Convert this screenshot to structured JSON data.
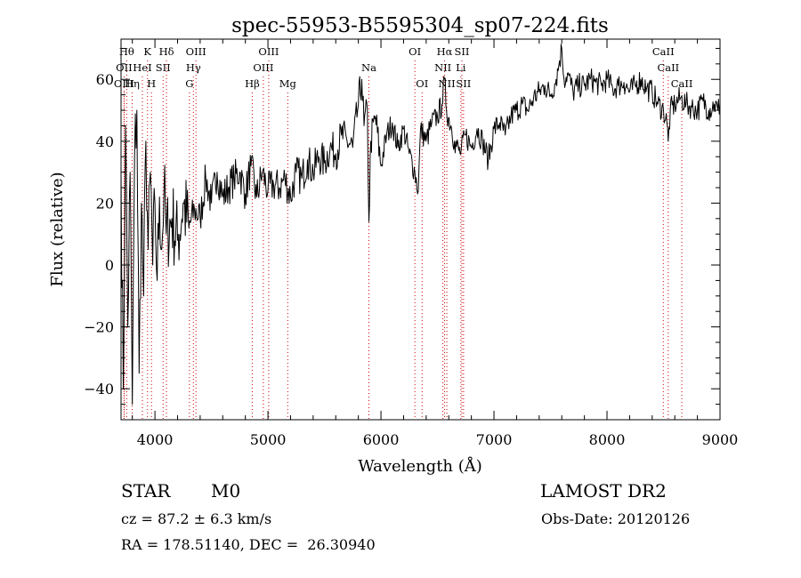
{
  "chart_data": {
    "type": "line",
    "title": "spec-55953-B5595304_sp07-224.fits",
    "xlabel": "Wavelength (Å)",
    "ylabel": "Flux (relative)",
    "xlim": [
      3700,
      9000
    ],
    "ylim": [
      -50,
      73
    ],
    "xticks": [
      4000,
      5000,
      6000,
      7000,
      8000,
      9000
    ],
    "yticks": [
      -40,
      -20,
      0,
      20,
      40,
      60
    ],
    "grid": false,
    "legend": "none",
    "line_color": "#000000",
    "marker_color": "#cc0000",
    "series": [
      {
        "x": [
          3700,
          3720,
          3740,
          3760,
          3780,
          3800,
          3820,
          3840,
          3860,
          3880,
          3900,
          3920,
          3940,
          3960,
          3980,
          4000,
          4020,
          4040,
          4060,
          4080,
          4100,
          4150,
          4200,
          4250,
          4300,
          4350,
          4400,
          4450,
          4500,
          4550,
          4600,
          4650,
          4700,
          4750,
          4800,
          4850,
          4900,
          4950,
          5000,
          5050,
          5100,
          5150,
          5200,
          5250,
          5300,
          5350,
          5400,
          5450,
          5500,
          5550,
          5600,
          5650,
          5700,
          5750,
          5800,
          5830,
          5850,
          5880,
          5893,
          5910,
          5950,
          6000,
          6050,
          6100,
          6150,
          6200,
          6250,
          6300,
          6330,
          6350,
          6400,
          6450,
          6500,
          6540,
          6563,
          6580,
          6620,
          6650,
          6700,
          6750,
          6800,
          6850,
          6900,
          6950,
          7000,
          7050,
          7100,
          7150,
          7200,
          7250,
          7300,
          7350,
          7400,
          7450,
          7500,
          7550,
          7580,
          7600,
          7620,
          7650,
          7700,
          7750,
          7800,
          7850,
          7900,
          7950,
          8000,
          8050,
          8100,
          8150,
          8200,
          8250,
          8300,
          8350,
          8400,
          8450,
          8500,
          8530,
          8542,
          8560,
          8600,
          8650,
          8700,
          8750,
          8800,
          8850,
          8900,
          8950,
          8980,
          9000
        ],
        "y": [
          30,
          -40,
          45,
          -20,
          30,
          -45,
          35,
          50,
          -35,
          20,
          -10,
          40,
          5,
          30,
          0,
          20,
          -5,
          22,
          5,
          25,
          10,
          15,
          8,
          20,
          12,
          18,
          15,
          28,
          20,
          30,
          22,
          25,
          28,
          30,
          23,
          32,
          22,
          30,
          24,
          26,
          25,
          28,
          22,
          30,
          28,
          34,
          30,
          35,
          33,
          38,
          36,
          42,
          40,
          38,
          52,
          60,
          45,
          50,
          14,
          40,
          48,
          32,
          42,
          46,
          38,
          44,
          36,
          30,
          24,
          44,
          40,
          46,
          48,
          52,
          60,
          50,
          45,
          40,
          36,
          42,
          38,
          44,
          40,
          34,
          44,
          46,
          42,
          48,
          50,
          52,
          50,
          54,
          56,
          58,
          55,
          60,
          66,
          70,
          60,
          62,
          56,
          58,
          58,
          60,
          59,
          58,
          60,
          57,
          58,
          59,
          56,
          58,
          60,
          57,
          56,
          52,
          50,
          46,
          40,
          50,
          52,
          54,
          52,
          51,
          50,
          53,
          50,
          52,
          50,
          52
        ]
      }
    ],
    "lines": [
      {
        "wl": 3750,
        "label": "Hθ",
        "row": 0
      },
      {
        "wl": 3727,
        "label": "OII",
        "row": 1
      },
      {
        "wl": 3727,
        "label": "OIII",
        "row": 2
      },
      {
        "wl": 3798,
        "label": "Hη",
        "row": 2
      },
      {
        "wl": 3934,
        "label": "K",
        "row": 0
      },
      {
        "wl": 3889,
        "label": "HeI",
        "row": 1
      },
      {
        "wl": 3969,
        "label": "H",
        "row": 2
      },
      {
        "wl": 4072,
        "label": "SII",
        "row": 1
      },
      {
        "wl": 4102,
        "label": "Hδ",
        "row": 0
      },
      {
        "wl": 4340,
        "label": "Hγ",
        "row": 1
      },
      {
        "wl": 4363,
        "label": "OIII",
        "row": 0
      },
      {
        "wl": 4305,
        "label": "G",
        "row": 2
      },
      {
        "wl": 4861,
        "label": "Hβ",
        "row": 2
      },
      {
        "wl": 4959,
        "label": "OIII",
        "row": 1
      },
      {
        "wl": 5007,
        "label": "OIII",
        "row": 0
      },
      {
        "wl": 5175,
        "label": "Mg",
        "row": 2
      },
      {
        "wl": 5893,
        "label": "Na",
        "row": 1
      },
      {
        "wl": 6300,
        "label": "OI",
        "row": 0
      },
      {
        "wl": 6364,
        "label": "OI",
        "row": 2
      },
      {
        "wl": 6548,
        "label": "NII",
        "row": 1
      },
      {
        "wl": 6563,
        "label": "Hα",
        "row": 0
      },
      {
        "wl": 6583,
        "label": "NII",
        "row": 2
      },
      {
        "wl": 6707,
        "label": "Li",
        "row": 1
      },
      {
        "wl": 6716,
        "label": "SII",
        "row": 0
      },
      {
        "wl": 6731,
        "label": "SII",
        "row": 2
      },
      {
        "wl": 8498,
        "label": "CaII",
        "row": 0
      },
      {
        "wl": 8542,
        "label": "CaII",
        "row": 1
      },
      {
        "wl": 8662,
        "label": "CaII",
        "row": 2
      }
    ]
  },
  "info": {
    "class_label": "STAR",
    "subclass_label": "M0",
    "survey": "LAMOST DR2",
    "cz": "cz = 87.2 ± 6.3 km/s",
    "obs_date": "Obs-Date: 20120126",
    "radec": "RA = 178.51140, DEC =  26.30940"
  }
}
